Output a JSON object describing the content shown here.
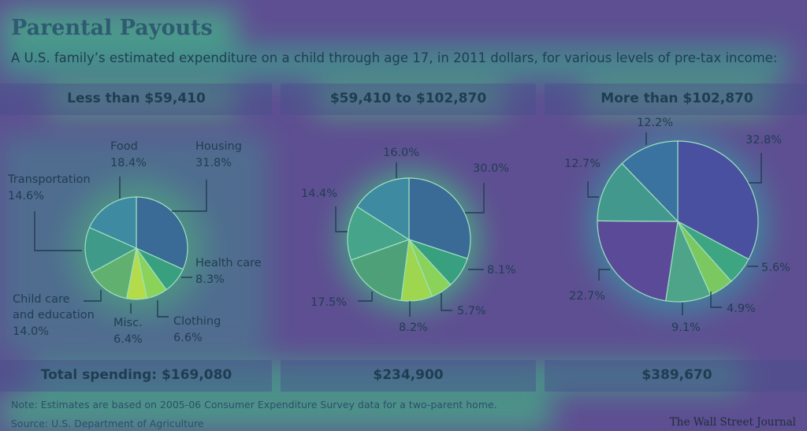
{
  "header": {
    "title": "Parental Payouts",
    "subtitle": "A U.S. family’s estimated expenditure on a child through age 17, in 2011 dollars, for various levels of pre-tax income:"
  },
  "footer": {
    "note": "Note: Estimates are based on 2005-06 Consumer Expenditure Survey data for a two-parent home.",
    "source": "Source: U.S. Department of Agriculture",
    "credit": "The Wall Street Journal"
  },
  "colors": {
    "background": "#5e4f92",
    "slice_fill": "#3f8c8c",
    "slice_stroke": "#9fe0c0",
    "text": "#1f3d52"
  },
  "chart_data": [
    {
      "type": "pie",
      "title": "Less than $59,410",
      "total_label": "Total spending: $169,080",
      "categories": [
        "Housing",
        "Health care",
        "Clothing",
        "Misc.",
        "Child care and education",
        "Transportation",
        "Food"
      ],
      "values": [
        31.8,
        8.3,
        6.6,
        6.4,
        14.0,
        14.6,
        18.4
      ],
      "value_labels": [
        "31.8%",
        "8.3%",
        "6.6%",
        "6.4%",
        "14.0%",
        "14.6%",
        "18.4%"
      ],
      "slice_colors": [
        "#3a6a96",
        "#38a07f",
        "#8ad25a",
        "#b4dc4a",
        "#62b070",
        "#3f9a8a",
        "#3e8aa0"
      ]
    },
    {
      "type": "pie",
      "title": "$59,410 to $102,870",
      "total_label": "$234,900",
      "values": [
        30.0,
        8.1,
        5.7,
        8.2,
        17.5,
        14.4,
        16.0
      ],
      "value_labels": [
        "30.0%",
        "8.1%",
        "5.7%",
        "8.2%",
        "17.5%",
        "14.4%",
        "16.0%"
      ],
      "slice_colors": [
        "#3a6a96",
        "#38a07f",
        "#8ad25a",
        "#9ed650",
        "#4ea078",
        "#46a48a",
        "#3e8aa0"
      ]
    },
    {
      "type": "pie",
      "title": "More than $102,870",
      "total_label": "$389,670",
      "values": [
        32.8,
        5.6,
        4.9,
        9.1,
        22.7,
        12.7,
        12.2
      ],
      "value_labels": [
        "32.8%",
        "5.6%",
        "4.9%",
        "9.1%",
        "22.7%",
        "12.7%",
        "12.2%"
      ],
      "slice_colors": [
        "#4a50a0",
        "#3ea582",
        "#7cc860",
        "#4ea488",
        "#5a4a98",
        "#42988c",
        "#3a72a0"
      ]
    }
  ]
}
